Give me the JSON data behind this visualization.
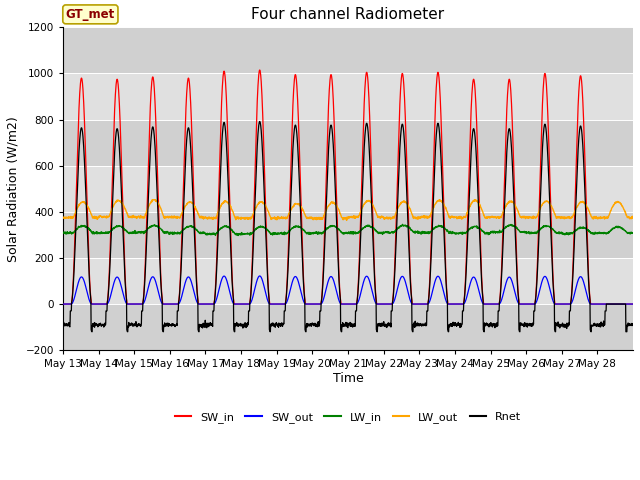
{
  "title": "Four channel Radiometer",
  "xlabel": "Time",
  "ylabel": "Solar Radiation (W/m2)",
  "ylim": [
    -200,
    1200
  ],
  "annotation_text": "GT_met",
  "legend_labels": [
    "SW_in",
    "SW_out",
    "LW_in",
    "LW_out",
    "Rnet"
  ],
  "legend_colors": [
    "red",
    "blue",
    "green",
    "orange",
    "black"
  ],
  "plot_bg_color": "#d8d8d8",
  "band_light_color": "#e8e8e8",
  "band_dark_color": "#c8c8c8",
  "fig_bg_color": "#ffffff",
  "n_days": 16,
  "start_day": 13,
  "tick_days": [
    13,
    14,
    15,
    16,
    17,
    18,
    19,
    20,
    21,
    22,
    23,
    24,
    25,
    26,
    27,
    28
  ],
  "pts_per_day": 144,
  "title_fontsize": 11,
  "label_fontsize": 9,
  "tick_fontsize": 7.5
}
